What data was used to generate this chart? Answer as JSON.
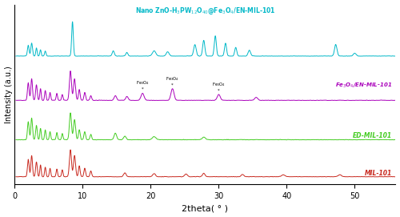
{
  "xlabel": "2theta( ° )",
  "ylabel": "Intensity (a.u.)",
  "xlim": [
    0,
    56
  ],
  "colors": {
    "MIL101": "#c8281e",
    "ED_MIL101": "#44cc22",
    "Fe3O4_EN_MIL101": "#aa00bb",
    "Nano": "#00b8c8"
  },
  "labels": {
    "MIL101": "MIL-101",
    "ED_MIL101": "ED-MIL-101",
    "Fe3O4_EN_MIL101": "Fe$_3$O$_4$/EN-MIL-101",
    "Nano": "Nano ZnO-H$_3$PW$_{12}$O$_{40}$@Fe$_3$O$_4$/EN-MIL-101"
  },
  "background_color": "#ffffff"
}
